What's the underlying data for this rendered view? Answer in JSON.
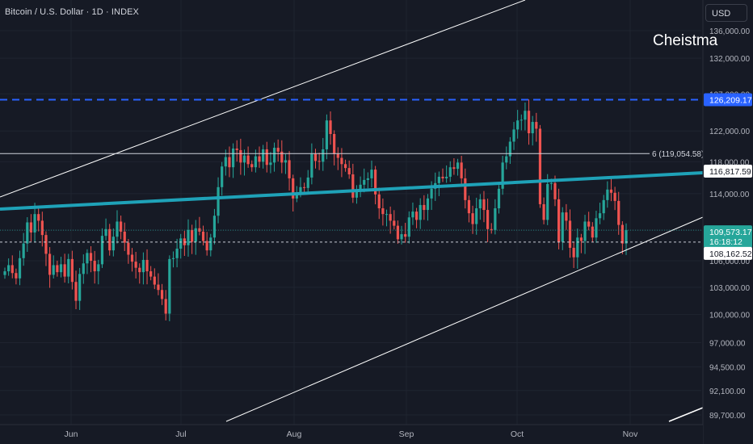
{
  "header": {
    "symbol_title": "Bitcoin / U.S. Dollar · 1D · INDEX",
    "currency_label": "USD"
  },
  "annotation": "Cheistma",
  "colors": {
    "background": "#161a25",
    "up": "#26a69a",
    "down": "#ef5350",
    "channel_line": "#ffffff",
    "trend_line": "#1fa2b8",
    "ath_line": "#2962ff",
    "text": "#d1d4dc"
  },
  "chart_data": {
    "type": "candlestick",
    "x_axis": {
      "ticks": [
        "Jun",
        "Jul",
        "Aug",
        "Sep",
        "Oct",
        "Nov"
      ]
    },
    "y_axis": {
      "scale": "log",
      "ticks": [
        "136,000.00",
        "132,000.00",
        "127,000.00",
        "122,000.00",
        "118,000.00",
        "114,000.00",
        "109,573.17",
        "106,000.00",
        "103,000.00",
        "100,000.00",
        "97,000.00",
        "94,500.00",
        "92,100.00",
        "89,700.00"
      ],
      "range": [
        89000,
        138000
      ]
    },
    "price_labels": {
      "ath": "126,209.17",
      "trend": "116,817.59",
      "last": "109,573.17",
      "countdown": "16:18:12",
      "dotted": "108,162.52"
    },
    "fib_label": "6 (119,054.58)",
    "levels": {
      "ath": 126209.17,
      "fib": 119054.58,
      "dotted": 108162.52,
      "last": 109573.17
    },
    "closes": [
      104800,
      105500,
      104600,
      104000,
      106300,
      108000,
      110500,
      109300,
      111500,
      110700,
      109000,
      106800,
      104400,
      105500,
      104700,
      105600,
      104200,
      106200,
      103600,
      101500,
      104500,
      105700,
      106900,
      106000,
      104800,
      105600,
      108900,
      109700,
      107200,
      108800,
      110600,
      109400,
      108100,
      106700,
      105900,
      105200,
      104700,
      106100,
      104800,
      104200,
      103300,
      102700,
      101700,
      100100,
      106200,
      106300,
      107400,
      108600,
      107800,
      109600,
      108200,
      109800,
      109400,
      108300,
      107200,
      108700,
      111300,
      114800,
      117400,
      118600,
      117300,
      119700,
      119500,
      117900,
      118800,
      117700,
      117300,
      118700,
      118000,
      119600,
      117600,
      117900,
      119800,
      119300,
      117900,
      118200,
      115900,
      113400,
      114100,
      114800,
      114700,
      116000,
      119000,
      118100,
      118000,
      119600,
      123400,
      121600,
      119000,
      118500,
      117700,
      117200,
      116400,
      113500,
      114400,
      115100,
      115700,
      115900,
      117000,
      113900,
      112200,
      111500,
      111500,
      110700,
      110100,
      108500,
      109100,
      108800,
      111100,
      111800,
      110800,
      112600,
      112000,
      113400,
      114600,
      115300,
      116100,
      115900,
      116100,
      117300,
      117100,
      117900,
      115900,
      113200,
      111600,
      110300,
      112200,
      113300,
      112000,
      109700,
      109600,
      112200,
      114600,
      117900,
      118700,
      120600,
      122200,
      123400,
      123500,
      124700,
      121700,
      123200,
      122300,
      112700,
      110800,
      115200,
      115300,
      113300,
      108200,
      111700,
      110700,
      107500,
      106400,
      108700,
      108300,
      110600,
      110000,
      108700,
      111000,
      111600,
      113200,
      114500,
      114100,
      113100,
      110200,
      108000,
      109573
    ]
  }
}
